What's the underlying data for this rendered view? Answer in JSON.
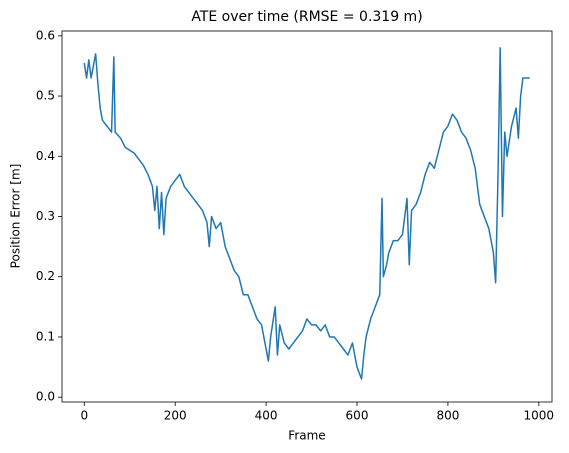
{
  "chart_data": {
    "type": "line",
    "title": "ATE over time (RMSE = 0.319 m)",
    "xlabel": "Frame",
    "ylabel": "Position Error [m]",
    "x": [
      0,
      5,
      10,
      15,
      25,
      30,
      35,
      40,
      50,
      60,
      65,
      68,
      80,
      90,
      100,
      110,
      120,
      130,
      140,
      150,
      155,
      160,
      165,
      170,
      175,
      180,
      190,
      200,
      210,
      220,
      230,
      240,
      250,
      260,
      270,
      275,
      280,
      290,
      300,
      310,
      320,
      330,
      340,
      350,
      360,
      370,
      380,
      390,
      400,
      405,
      410,
      420,
      425,
      430,
      440,
      450,
      460,
      470,
      480,
      490,
      500,
      510,
      520,
      530,
      540,
      550,
      560,
      570,
      580,
      590,
      600,
      610,
      615,
      620,
      630,
      640,
      650,
      655,
      658,
      665,
      670,
      680,
      690,
      700,
      710,
      715,
      720,
      730,
      740,
      750,
      760,
      770,
      780,
      790,
      800,
      810,
      820,
      830,
      840,
      850,
      860,
      870,
      880,
      890,
      900,
      905,
      910,
      915,
      920,
      925,
      930,
      940,
      950,
      955,
      960,
      965,
      970,
      980
    ],
    "series": [
      {
        "name": "ATE",
        "color": "#1f77b4",
        "values": [
          0.555,
          0.53,
          0.56,
          0.53,
          0.57,
          0.52,
          0.48,
          0.46,
          0.45,
          0.44,
          0.565,
          0.44,
          0.43,
          0.415,
          0.41,
          0.405,
          0.395,
          0.385,
          0.37,
          0.35,
          0.31,
          0.35,
          0.28,
          0.34,
          0.27,
          0.33,
          0.35,
          0.36,
          0.37,
          0.35,
          0.34,
          0.33,
          0.32,
          0.31,
          0.29,
          0.25,
          0.3,
          0.28,
          0.29,
          0.25,
          0.23,
          0.21,
          0.2,
          0.17,
          0.17,
          0.15,
          0.13,
          0.12,
          0.08,
          0.06,
          0.1,
          0.15,
          0.07,
          0.12,
          0.09,
          0.08,
          0.09,
          0.1,
          0.11,
          0.13,
          0.12,
          0.12,
          0.11,
          0.12,
          0.1,
          0.1,
          0.09,
          0.08,
          0.07,
          0.09,
          0.05,
          0.03,
          0.07,
          0.1,
          0.13,
          0.15,
          0.17,
          0.33,
          0.2,
          0.22,
          0.24,
          0.26,
          0.26,
          0.27,
          0.33,
          0.22,
          0.31,
          0.32,
          0.34,
          0.37,
          0.39,
          0.38,
          0.41,
          0.44,
          0.45,
          0.47,
          0.46,
          0.44,
          0.43,
          0.41,
          0.38,
          0.32,
          0.3,
          0.28,
          0.24,
          0.19,
          0.36,
          0.58,
          0.3,
          0.44,
          0.4,
          0.45,
          0.48,
          0.43,
          0.5,
          0.53,
          0.53,
          0.53
        ]
      }
    ],
    "xlim": [
      -49,
      1029
    ],
    "xticks": [
      0,
      200,
      400,
      600,
      800,
      1000
    ],
    "ylim": [
      -0.008,
      0.608
    ],
    "yticks": [
      {
        "value": 0,
        "label": "0.0"
      },
      0.1,
      0.2,
      0.3,
      0.4,
      0.5,
      0.6
    ],
    "grid": false
  }
}
